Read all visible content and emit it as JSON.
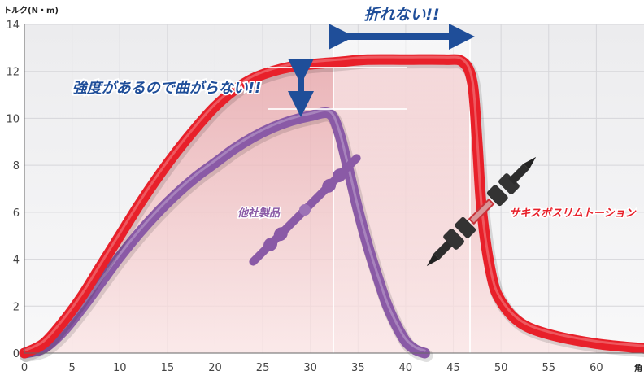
{
  "chart_data": {
    "type": "line",
    "ylabel": "トルク(N・m)",
    "xlabel": "角",
    "xlim": [
      0,
      65
    ],
    "ylim": [
      0,
      14
    ],
    "xticks": [
      0,
      5,
      10,
      15,
      20,
      25,
      30,
      35,
      40,
      45,
      50,
      55,
      60
    ],
    "yticks": [
      0,
      2,
      4,
      6,
      8,
      10,
      12,
      14
    ],
    "grid": true,
    "series": [
      {
        "name": "サキスボスリムトーション",
        "color": "#e8202a",
        "x": [
          0,
          2,
          4,
          6,
          8,
          10,
          12,
          14,
          16,
          18,
          20,
          22,
          24,
          26,
          28,
          30,
          33,
          36,
          40,
          44,
          46,
          47,
          47.5,
          48,
          49,
          50,
          52,
          55,
          60,
          65
        ],
        "y": [
          0,
          0.4,
          1.3,
          2.4,
          3.7,
          5.0,
          6.3,
          7.5,
          8.6,
          9.6,
          10.5,
          11.2,
          11.7,
          12.0,
          12.2,
          12.3,
          12.4,
          12.5,
          12.5,
          12.5,
          12.4,
          11.5,
          9.0,
          6.0,
          3.3,
          2.2,
          1.3,
          0.8,
          0.4,
          0.2
        ]
      },
      {
        "name": "他社製品",
        "color": "#8a5aa6",
        "x": [
          0,
          2,
          4,
          6,
          8,
          10,
          12,
          14,
          16,
          18,
          20,
          22,
          24,
          26,
          28,
          30,
          32,
          33,
          34,
          35,
          36,
          37,
          38,
          39,
          40,
          41,
          42
        ],
        "y": [
          0,
          0.2,
          0.9,
          1.9,
          3.0,
          4.1,
          5.1,
          6.0,
          6.8,
          7.5,
          8.1,
          8.7,
          9.2,
          9.6,
          9.9,
          10.1,
          10.2,
          9.4,
          7.8,
          6.1,
          4.6,
          3.3,
          2.1,
          1.2,
          0.5,
          0.15,
          0
        ]
      }
    ],
    "annotations": [
      {
        "text": "折れない!!",
        "color": "#1f4e99"
      },
      {
        "text": "強度があるので曲がらない!!",
        "color": "#1f4e99"
      }
    ]
  }
}
